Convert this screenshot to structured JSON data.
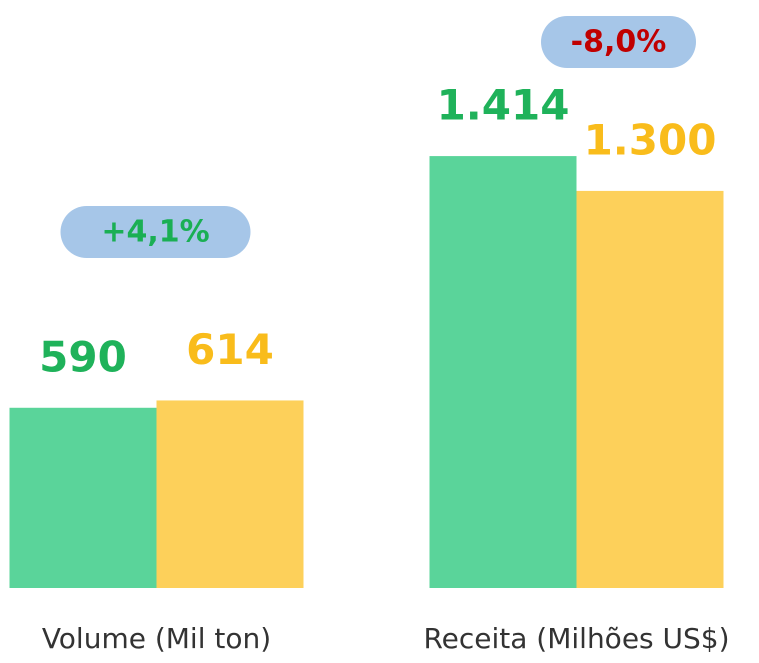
{
  "chart_data": {
    "type": "bar",
    "categories": [
      "Volume (Mil ton)",
      "Receita (Milhões US$)"
    ],
    "series": [
      {
        "color": "#5ad49a",
        "label_color": "#1fb25a",
        "values": [
          590,
          1414
        ],
        "value_labels": [
          "590",
          "1.414"
        ]
      },
      {
        "color": "#fdd05a",
        "label_color": "#f9bc1b",
        "values": [
          614,
          1300
        ],
        "value_labels": [
          "614",
          "1.300"
        ]
      }
    ],
    "ylim": [
      0,
      1925
    ],
    "annotations": [
      {
        "text": "+4,1%",
        "color": "#1aaf54",
        "background": "#a6c6e8"
      },
      {
        "text": "-8,0%",
        "color": "#c00000",
        "background": "#a6c6e8"
      }
    ]
  }
}
